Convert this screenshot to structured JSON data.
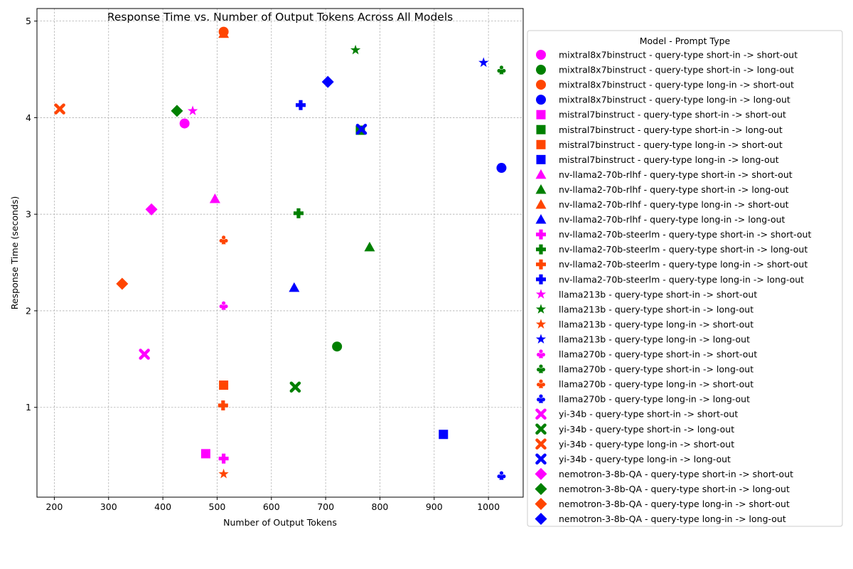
{
  "chart_data": {
    "type": "scatter",
    "title": "Response Time vs. Number of Output Tokens Across All Models",
    "xlabel": "Number of Output Tokens",
    "ylabel": "Response Time (seconds)",
    "xlim": [
      168,
      1064
    ],
    "ylim": [
      0.07,
      5.13
    ],
    "xticks": [
      200,
      300,
      400,
      500,
      600,
      700,
      800,
      900,
      1000
    ],
    "yticks": [
      1,
      2,
      3,
      4,
      5
    ],
    "grid": true,
    "legend_title": "Model - Prompt Type",
    "legend_position": "outside-right",
    "colors": {
      "short-in -> short-out": "#ff00ff",
      "short-in -> long-out": "#008000",
      "long-in -> short-out": "#ff4500",
      "long-in -> long-out": "#0000ff"
    },
    "series": [
      {
        "name": "mixtral8x7binstruct - query-type short-in -> short-out",
        "marker": "circle",
        "color": "#ff00ff",
        "points": [
          {
            "x": 440,
            "y": 3.94
          }
        ]
      },
      {
        "name": "mixtral8x7binstruct - query-type short-in -> long-out",
        "marker": "circle",
        "color": "#008000",
        "points": [
          {
            "x": 721,
            "y": 1.63
          }
        ]
      },
      {
        "name": "mixtral8x7binstruct - query-type long-in -> short-out",
        "marker": "circle",
        "color": "#ff4500",
        "points": [
          {
            "x": 512,
            "y": 4.89
          }
        ]
      },
      {
        "name": "mixtral8x7binstruct - query-type long-in -> long-out",
        "marker": "circle",
        "color": "#0000ff",
        "points": [
          {
            "x": 1024,
            "y": 3.48
          }
        ]
      },
      {
        "name": "mistral7binstruct - query-type short-in -> short-out",
        "marker": "square",
        "color": "#ff00ff",
        "points": [
          {
            "x": 479,
            "y": 0.52
          }
        ]
      },
      {
        "name": "mistral7binstruct - query-type short-in -> long-out",
        "marker": "square",
        "color": "#008000",
        "points": [
          {
            "x": 764,
            "y": 3.87
          }
        ]
      },
      {
        "name": "mistral7binstruct - query-type long-in -> short-out",
        "marker": "square",
        "color": "#ff4500",
        "points": [
          {
            "x": 512,
            "y": 1.23
          }
        ]
      },
      {
        "name": "mistral7binstruct - query-type long-in -> long-out",
        "marker": "square",
        "color": "#0000ff",
        "points": [
          {
            "x": 917,
            "y": 0.72
          }
        ]
      },
      {
        "name": "nv-llama2-70b-rlhf - query-type short-in -> short-out",
        "marker": "triangle",
        "color": "#ff00ff",
        "points": [
          {
            "x": 496,
            "y": 3.16
          }
        ]
      },
      {
        "name": "nv-llama2-70b-rlhf - query-type short-in -> long-out",
        "marker": "triangle",
        "color": "#008000",
        "points": [
          {
            "x": 781,
            "y": 2.66
          }
        ]
      },
      {
        "name": "nv-llama2-70b-rlhf - query-type long-in -> short-out",
        "marker": "triangle",
        "color": "#ff4500",
        "points": [
          {
            "x": 512,
            "y": 4.87
          }
        ]
      },
      {
        "name": "nv-llama2-70b-rlhf - query-type long-in -> long-out",
        "marker": "triangle",
        "color": "#0000ff",
        "points": [
          {
            "x": 642,
            "y": 2.24
          }
        ]
      },
      {
        "name": "nv-llama2-70b-steerlm - query-type short-in -> short-out",
        "marker": "plus",
        "color": "#ff00ff",
        "points": [
          {
            "x": 512,
            "y": 0.47
          }
        ]
      },
      {
        "name": "nv-llama2-70b-steerlm - query-type short-in -> long-out",
        "marker": "plus",
        "color": "#008000",
        "points": [
          {
            "x": 650,
            "y": 3.01
          }
        ]
      },
      {
        "name": "nv-llama2-70b-steerlm - query-type long-in -> short-out",
        "marker": "plus",
        "color": "#ff4500",
        "points": [
          {
            "x": 511,
            "y": 1.02
          }
        ]
      },
      {
        "name": "nv-llama2-70b-steerlm - query-type long-in -> long-out",
        "marker": "plus",
        "color": "#0000ff",
        "points": [
          {
            "x": 654,
            "y": 4.13
          }
        ]
      },
      {
        "name": "llama213b - query-type short-in -> short-out",
        "marker": "star",
        "color": "#ff00ff",
        "points": [
          {
            "x": 455,
            "y": 4.07
          }
        ]
      },
      {
        "name": "llama213b - query-type short-in -> long-out",
        "marker": "star",
        "color": "#008000",
        "points": [
          {
            "x": 755,
            "y": 4.7
          }
        ]
      },
      {
        "name": "llama213b - query-type long-in -> short-out",
        "marker": "star",
        "color": "#ff4500",
        "points": [
          {
            "x": 512,
            "y": 0.31
          }
        ]
      },
      {
        "name": "llama213b - query-type long-in -> long-out",
        "marker": "star",
        "color": "#0000ff",
        "points": [
          {
            "x": 991,
            "y": 4.57
          }
        ]
      },
      {
        "name": "llama270b - query-type short-in -> short-out",
        "marker": "club",
        "color": "#ff00ff",
        "points": [
          {
            "x": 512,
            "y": 2.05
          }
        ]
      },
      {
        "name": "llama270b - query-type short-in -> long-out",
        "marker": "club",
        "color": "#008000",
        "points": [
          {
            "x": 1024,
            "y": 4.49
          }
        ]
      },
      {
        "name": "llama270b - query-type long-in -> short-out",
        "marker": "club",
        "color": "#ff4500",
        "points": [
          {
            "x": 512,
            "y": 2.73
          }
        ]
      },
      {
        "name": "llama270b - query-type long-in -> long-out",
        "marker": "club",
        "color": "#0000ff",
        "points": [
          {
            "x": 1024,
            "y": 0.29
          }
        ]
      },
      {
        "name": "yi-34b - query-type short-in -> short-out",
        "marker": "x",
        "color": "#ff00ff",
        "points": [
          {
            "x": 366,
            "y": 1.55
          }
        ]
      },
      {
        "name": "yi-34b - query-type short-in -> long-out",
        "marker": "x",
        "color": "#008000",
        "points": [
          {
            "x": 644,
            "y": 1.21
          }
        ]
      },
      {
        "name": "yi-34b - query-type long-in -> short-out",
        "marker": "x",
        "color": "#ff4500",
        "points": [
          {
            "x": 210,
            "y": 4.09
          }
        ]
      },
      {
        "name": "yi-34b - query-type long-in -> long-out",
        "marker": "x",
        "color": "#0000ff",
        "points": [
          {
            "x": 766,
            "y": 3.88
          }
        ]
      },
      {
        "name": "nemotron-3-8b-QA - query-type short-in -> short-out",
        "marker": "diamond",
        "color": "#ff00ff",
        "points": [
          {
            "x": 379,
            "y": 3.05
          }
        ]
      },
      {
        "name": "nemotron-3-8b-QA - query-type short-in -> long-out",
        "marker": "diamond",
        "color": "#008000",
        "points": [
          {
            "x": 426,
            "y": 4.07
          }
        ]
      },
      {
        "name": "nemotron-3-8b-QA - query-type long-in -> short-out",
        "marker": "diamond",
        "color": "#ff4500",
        "points": [
          {
            "x": 325,
            "y": 2.28
          }
        ]
      },
      {
        "name": "nemotron-3-8b-QA - query-type long-in -> long-out",
        "marker": "diamond",
        "color": "#0000ff",
        "points": [
          {
            "x": 704,
            "y": 4.37
          }
        ]
      }
    ]
  }
}
